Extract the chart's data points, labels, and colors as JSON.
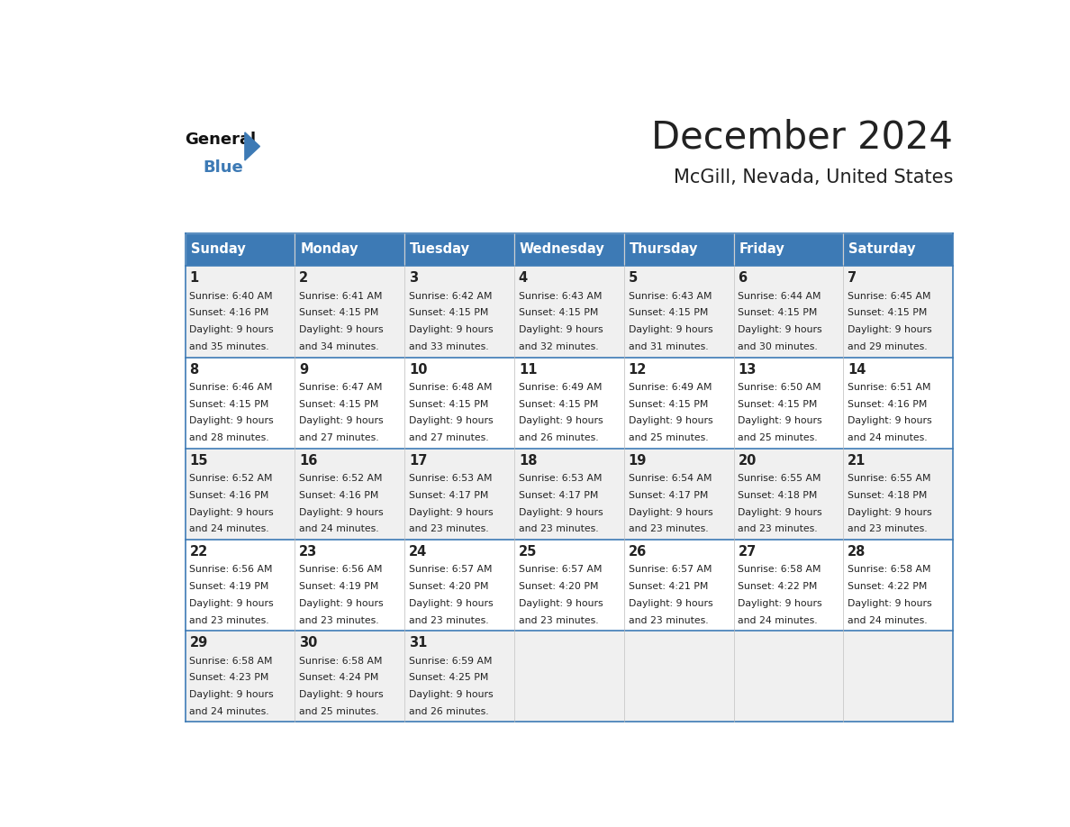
{
  "title": "December 2024",
  "subtitle": "McGill, Nevada, United States",
  "header_color": "#3d7ab5",
  "header_text_color": "#ffffff",
  "days_of_week": [
    "Sunday",
    "Monday",
    "Tuesday",
    "Wednesday",
    "Thursday",
    "Friday",
    "Saturday"
  ],
  "cell_bg_even": "#f0f0f0",
  "cell_bg_odd": "#ffffff",
  "border_color": "#3d7ab5",
  "text_color": "#222222",
  "weeks": [
    [
      {
        "day": 1,
        "sunrise": "6:40 AM",
        "sunset": "4:16 PM",
        "daylight_hrs": 9,
        "daylight_min": "35"
      },
      {
        "day": 2,
        "sunrise": "6:41 AM",
        "sunset": "4:15 PM",
        "daylight_hrs": 9,
        "daylight_min": "34"
      },
      {
        "day": 3,
        "sunrise": "6:42 AM",
        "sunset": "4:15 PM",
        "daylight_hrs": 9,
        "daylight_min": "33"
      },
      {
        "day": 4,
        "sunrise": "6:43 AM",
        "sunset": "4:15 PM",
        "daylight_hrs": 9,
        "daylight_min": "32"
      },
      {
        "day": 5,
        "sunrise": "6:43 AM",
        "sunset": "4:15 PM",
        "daylight_hrs": 9,
        "daylight_min": "31"
      },
      {
        "day": 6,
        "sunrise": "6:44 AM",
        "sunset": "4:15 PM",
        "daylight_hrs": 9,
        "daylight_min": "30"
      },
      {
        "day": 7,
        "sunrise": "6:45 AM",
        "sunset": "4:15 PM",
        "daylight_hrs": 9,
        "daylight_min": "29"
      }
    ],
    [
      {
        "day": 8,
        "sunrise": "6:46 AM",
        "sunset": "4:15 PM",
        "daylight_hrs": 9,
        "daylight_min": "28"
      },
      {
        "day": 9,
        "sunrise": "6:47 AM",
        "sunset": "4:15 PM",
        "daylight_hrs": 9,
        "daylight_min": "27"
      },
      {
        "day": 10,
        "sunrise": "6:48 AM",
        "sunset": "4:15 PM",
        "daylight_hrs": 9,
        "daylight_min": "27"
      },
      {
        "day": 11,
        "sunrise": "6:49 AM",
        "sunset": "4:15 PM",
        "daylight_hrs": 9,
        "daylight_min": "26"
      },
      {
        "day": 12,
        "sunrise": "6:49 AM",
        "sunset": "4:15 PM",
        "daylight_hrs": 9,
        "daylight_min": "25"
      },
      {
        "day": 13,
        "sunrise": "6:50 AM",
        "sunset": "4:15 PM",
        "daylight_hrs": 9,
        "daylight_min": "25"
      },
      {
        "day": 14,
        "sunrise": "6:51 AM",
        "sunset": "4:16 PM",
        "daylight_hrs": 9,
        "daylight_min": "24"
      }
    ],
    [
      {
        "day": 15,
        "sunrise": "6:52 AM",
        "sunset": "4:16 PM",
        "daylight_hrs": 9,
        "daylight_min": "24"
      },
      {
        "day": 16,
        "sunrise": "6:52 AM",
        "sunset": "4:16 PM",
        "daylight_hrs": 9,
        "daylight_min": "24"
      },
      {
        "day": 17,
        "sunrise": "6:53 AM",
        "sunset": "4:17 PM",
        "daylight_hrs": 9,
        "daylight_min": "23"
      },
      {
        "day": 18,
        "sunrise": "6:53 AM",
        "sunset": "4:17 PM",
        "daylight_hrs": 9,
        "daylight_min": "23"
      },
      {
        "day": 19,
        "sunrise": "6:54 AM",
        "sunset": "4:17 PM",
        "daylight_hrs": 9,
        "daylight_min": "23"
      },
      {
        "day": 20,
        "sunrise": "6:55 AM",
        "sunset": "4:18 PM",
        "daylight_hrs": 9,
        "daylight_min": "23"
      },
      {
        "day": 21,
        "sunrise": "6:55 AM",
        "sunset": "4:18 PM",
        "daylight_hrs": 9,
        "daylight_min": "23"
      }
    ],
    [
      {
        "day": 22,
        "sunrise": "6:56 AM",
        "sunset": "4:19 PM",
        "daylight_hrs": 9,
        "daylight_min": "23"
      },
      {
        "day": 23,
        "sunrise": "6:56 AM",
        "sunset": "4:19 PM",
        "daylight_hrs": 9,
        "daylight_min": "23"
      },
      {
        "day": 24,
        "sunrise": "6:57 AM",
        "sunset": "4:20 PM",
        "daylight_hrs": 9,
        "daylight_min": "23"
      },
      {
        "day": 25,
        "sunrise": "6:57 AM",
        "sunset": "4:20 PM",
        "daylight_hrs": 9,
        "daylight_min": "23"
      },
      {
        "day": 26,
        "sunrise": "6:57 AM",
        "sunset": "4:21 PM",
        "daylight_hrs": 9,
        "daylight_min": "23"
      },
      {
        "day": 27,
        "sunrise": "6:58 AM",
        "sunset": "4:22 PM",
        "daylight_hrs": 9,
        "daylight_min": "24"
      },
      {
        "day": 28,
        "sunrise": "6:58 AM",
        "sunset": "4:22 PM",
        "daylight_hrs": 9,
        "daylight_min": "24"
      }
    ],
    [
      {
        "day": 29,
        "sunrise": "6:58 AM",
        "sunset": "4:23 PM",
        "daylight_hrs": 9,
        "daylight_min": "24"
      },
      {
        "day": 30,
        "sunrise": "6:58 AM",
        "sunset": "4:24 PM",
        "daylight_hrs": 9,
        "daylight_min": "25"
      },
      {
        "day": 31,
        "sunrise": "6:59 AM",
        "sunset": "4:25 PM",
        "daylight_hrs": 9,
        "daylight_min": "26"
      },
      null,
      null,
      null,
      null
    ]
  ]
}
